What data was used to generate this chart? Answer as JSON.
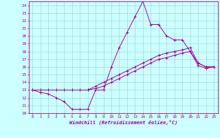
{
  "xlabel": "Windchill (Refroidissement éolien,°C)",
  "bg_color": "#ccffff",
  "line_color": "#990099",
  "grid_color": "#99cccc",
  "xlim": [
    -0.5,
    23.5
  ],
  "ylim": [
    10,
    24.5
  ],
  "xticks": [
    0,
    1,
    2,
    3,
    4,
    5,
    6,
    7,
    8,
    9,
    10,
    11,
    12,
    13,
    14,
    15,
    16,
    17,
    18,
    19,
    20,
    21,
    22,
    23
  ],
  "yticks": [
    10,
    11,
    12,
    13,
    14,
    15,
    16,
    17,
    18,
    19,
    20,
    21,
    22,
    23,
    24
  ],
  "series": [
    {
      "x": [
        0,
        1,
        2,
        3,
        4,
        5,
        6,
        7,
        8,
        9,
        10,
        11,
        12,
        13,
        14,
        15,
        16,
        17,
        18,
        19,
        20,
        21,
        22,
        23
      ],
      "y": [
        13,
        12.7,
        12.5,
        12,
        11.5,
        10.5,
        10.5,
        10.5,
        13,
        13,
        16,
        18.5,
        20.5,
        22.5,
        24.5,
        21.5,
        21.5,
        20,
        19.5,
        19.5,
        18,
        16.5,
        16,
        16
      ]
    },
    {
      "x": [
        0,
        1,
        2,
        3,
        4,
        5,
        6,
        7,
        8,
        9,
        10,
        11,
        12,
        13,
        14,
        15,
        16,
        17,
        18,
        19,
        20,
        21,
        22,
        23
      ],
      "y": [
        13,
        13,
        13,
        13,
        13,
        13,
        13,
        13,
        13.5,
        14,
        14.5,
        15,
        15.5,
        16,
        16.5,
        17,
        17.5,
        17.8,
        18,
        18.2,
        18.5,
        16.5,
        16,
        16
      ]
    },
    {
      "x": [
        0,
        1,
        2,
        3,
        4,
        5,
        6,
        7,
        8,
        9,
        10,
        11,
        12,
        13,
        14,
        15,
        16,
        17,
        18,
        19,
        20,
        21,
        22,
        23
      ],
      "y": [
        13,
        13,
        13,
        13,
        13,
        13,
        13,
        13,
        13.2,
        13.5,
        14,
        14.5,
        15,
        15.5,
        16,
        16.5,
        17,
        17.2,
        17.5,
        17.8,
        18,
        16.2,
        15.8,
        16
      ]
    }
  ]
}
